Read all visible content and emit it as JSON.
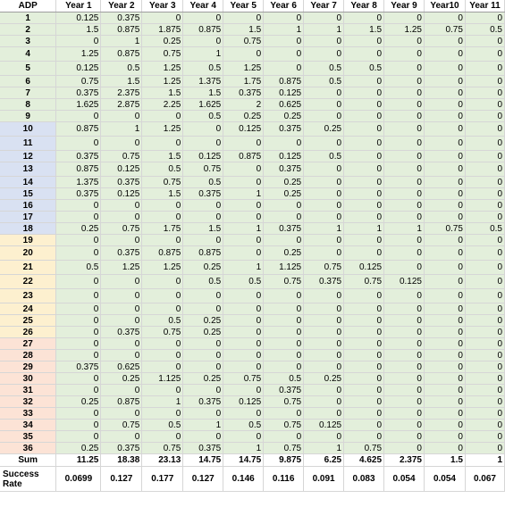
{
  "colors": {
    "value_cells": "#e3efdb",
    "group_1": "#e3efdb",
    "group_2": "#d9e1f2",
    "group_3": "#fdf0cf",
    "group_4": "#fce3d6"
  },
  "table": {
    "headers": [
      "ADP",
      "Year 1",
      "Year 2",
      "Year 3",
      "Year 4",
      "Year 5",
      "Year 6",
      "Year 7",
      "Year 8",
      "Year 9",
      "Year10",
      "Year 11"
    ],
    "rows": [
      {
        "adp": "1",
        "group": 1,
        "values": [
          "0.125",
          "0.375",
          "0",
          "0",
          "0",
          "0",
          "0",
          "0",
          "0",
          "0",
          "0"
        ]
      },
      {
        "adp": "2",
        "group": 1,
        "values": [
          "1.5",
          "0.875",
          "1.875",
          "0.875",
          "1.5",
          "1",
          "1",
          "1.5",
          "1.25",
          "0.75",
          "0.5"
        ]
      },
      {
        "adp": "3",
        "group": 1,
        "values": [
          "0",
          "1",
          "0.25",
          "0",
          "0.75",
          "0",
          "0",
          "0",
          "0",
          "0",
          "0"
        ]
      },
      {
        "adp": "4",
        "group": 1,
        "values": [
          "1.25",
          "0.875",
          "0.75",
          "1",
          "0",
          "0",
          "0",
          "0",
          "0",
          "0",
          "0"
        ]
      },
      {
        "adp": "5",
        "group": 1,
        "values": [
          "0.125",
          "0.5",
          "1.25",
          "0.5",
          "1.25",
          "0",
          "0.5",
          "0.5",
          "0",
          "0",
          "0"
        ]
      },
      {
        "adp": "6",
        "group": 1,
        "values": [
          "0.75",
          "1.5",
          "1.25",
          "1.375",
          "1.75",
          "0.875",
          "0.5",
          "0",
          "0",
          "0",
          "0"
        ]
      },
      {
        "adp": "7",
        "group": 1,
        "values": [
          "0.375",
          "2.375",
          "1.5",
          "1.5",
          "0.375",
          "0.125",
          "0",
          "0",
          "0",
          "0",
          "0"
        ]
      },
      {
        "adp": "8",
        "group": 1,
        "values": [
          "1.625",
          "2.875",
          "2.25",
          "1.625",
          "2",
          "0.625",
          "0",
          "0",
          "0",
          "0",
          "0"
        ]
      },
      {
        "adp": "9",
        "group": 1,
        "values": [
          "0",
          "0",
          "0",
          "0.5",
          "0.25",
          "0.25",
          "0",
          "0",
          "0",
          "0",
          "0"
        ]
      },
      {
        "adp": "10",
        "group": 2,
        "values": [
          "0.875",
          "1",
          "1.25",
          "0",
          "0.125",
          "0.375",
          "0.25",
          "0",
          "0",
          "0",
          "0"
        ]
      },
      {
        "adp": "11",
        "group": 2,
        "values": [
          "0",
          "0",
          "0",
          "0",
          "0",
          "0",
          "0",
          "0",
          "0",
          "0",
          "0"
        ]
      },
      {
        "adp": "12",
        "group": 2,
        "values": [
          "0.375",
          "0.75",
          "1.5",
          "0.125",
          "0.875",
          "0.125",
          "0.5",
          "0",
          "0",
          "0",
          "0"
        ]
      },
      {
        "adp": "13",
        "group": 2,
        "values": [
          "0.875",
          "0.125",
          "0.5",
          "0.75",
          "0",
          "0.375",
          "0",
          "0",
          "0",
          "0",
          "0"
        ]
      },
      {
        "adp": "14",
        "group": 2,
        "values": [
          "1.375",
          "0.375",
          "0.75",
          "0.5",
          "0",
          "0.25",
          "0",
          "0",
          "0",
          "0",
          "0"
        ]
      },
      {
        "adp": "15",
        "group": 2,
        "values": [
          "0.375",
          "0.125",
          "1.5",
          "0.375",
          "1",
          "0.25",
          "0",
          "0",
          "0",
          "0",
          "0"
        ]
      },
      {
        "adp": "16",
        "group": 2,
        "values": [
          "0",
          "0",
          "0",
          "0",
          "0",
          "0",
          "0",
          "0",
          "0",
          "0",
          "0"
        ]
      },
      {
        "adp": "17",
        "group": 2,
        "values": [
          "0",
          "0",
          "0",
          "0",
          "0",
          "0",
          "0",
          "0",
          "0",
          "0",
          "0"
        ]
      },
      {
        "adp": "18",
        "group": 2,
        "values": [
          "0.25",
          "0.75",
          "1.75",
          "1.5",
          "1",
          "0.375",
          "1",
          "1",
          "1",
          "0.75",
          "0.5"
        ]
      },
      {
        "adp": "19",
        "group": 3,
        "values": [
          "0",
          "0",
          "0",
          "0",
          "0",
          "0",
          "0",
          "0",
          "0",
          "0",
          "0"
        ]
      },
      {
        "adp": "20",
        "group": 3,
        "values": [
          "0",
          "0.375",
          "0.875",
          "0.875",
          "0",
          "0.25",
          "0",
          "0",
          "0",
          "0",
          "0"
        ]
      },
      {
        "adp": "21",
        "group": 3,
        "values": [
          "0.5",
          "1.25",
          "1.25",
          "0.25",
          "1",
          "1.125",
          "0.75",
          "0.125",
          "0",
          "0",
          "0"
        ]
      },
      {
        "adp": "22",
        "group": 3,
        "values": [
          "0",
          "0",
          "0",
          "0.5",
          "0.5",
          "0.75",
          "0.375",
          "0.75",
          "0.125",
          "0",
          "0"
        ]
      },
      {
        "adp": "23",
        "group": 3,
        "values": [
          "0",
          "0",
          "0",
          "0",
          "0",
          "0",
          "0",
          "0",
          "0",
          "0",
          "0"
        ]
      },
      {
        "adp": "24",
        "group": 3,
        "values": [
          "0",
          "0",
          "0",
          "0",
          "0",
          "0",
          "0",
          "0",
          "0",
          "0",
          "0"
        ]
      },
      {
        "adp": "25",
        "group": 3,
        "values": [
          "0",
          "0",
          "0.5",
          "0.25",
          "0",
          "0",
          "0",
          "0",
          "0",
          "0",
          "0"
        ]
      },
      {
        "adp": "26",
        "group": 3,
        "values": [
          "0",
          "0.375",
          "0.75",
          "0.25",
          "0",
          "0",
          "0",
          "0",
          "0",
          "0",
          "0"
        ]
      },
      {
        "adp": "27",
        "group": 4,
        "values": [
          "0",
          "0",
          "0",
          "0",
          "0",
          "0",
          "0",
          "0",
          "0",
          "0",
          "0"
        ]
      },
      {
        "adp": "28",
        "group": 4,
        "values": [
          "0",
          "0",
          "0",
          "0",
          "0",
          "0",
          "0",
          "0",
          "0",
          "0",
          "0"
        ]
      },
      {
        "adp": "29",
        "group": 4,
        "values": [
          "0.375",
          "0.625",
          "0",
          "0",
          "0",
          "0",
          "0",
          "0",
          "0",
          "0",
          "0"
        ]
      },
      {
        "adp": "30",
        "group": 4,
        "values": [
          "0",
          "0.25",
          "1.125",
          "0.25",
          "0.75",
          "0.5",
          "0.25",
          "0",
          "0",
          "0",
          "0"
        ]
      },
      {
        "adp": "31",
        "group": 4,
        "values": [
          "0",
          "0",
          "0",
          "0",
          "0",
          "0.375",
          "0",
          "0",
          "0",
          "0",
          "0"
        ]
      },
      {
        "adp": "32",
        "group": 4,
        "values": [
          "0.25",
          "0.875",
          "1",
          "0.375",
          "0.125",
          "0.75",
          "0",
          "0",
          "0",
          "0",
          "0"
        ]
      },
      {
        "adp": "33",
        "group": 4,
        "values": [
          "0",
          "0",
          "0",
          "0",
          "0",
          "0",
          "0",
          "0",
          "0",
          "0",
          "0"
        ]
      },
      {
        "adp": "34",
        "group": 4,
        "values": [
          "0",
          "0.75",
          "0.5",
          "1",
          "0.5",
          "0.75",
          "0.125",
          "0",
          "0",
          "0",
          "0"
        ]
      },
      {
        "adp": "35",
        "group": 4,
        "values": [
          "0",
          "0",
          "0",
          "0",
          "0",
          "0",
          "0",
          "0",
          "0",
          "0",
          "0"
        ]
      },
      {
        "adp": "36",
        "group": 4,
        "values": [
          "0.25",
          "0.375",
          "0.75",
          "0.375",
          "1",
          "0.75",
          "1",
          "0.75",
          "0",
          "0",
          "0"
        ]
      }
    ],
    "sum": {
      "label": "Sum",
      "values": [
        "11.25",
        "18.38",
        "23.13",
        "14.75",
        "14.75",
        "9.875",
        "6.25",
        "4.625",
        "2.375",
        "1.5",
        "1"
      ]
    },
    "success_rate": {
      "label_line1": "Success",
      "label_line2": "Rate",
      "values": [
        "0.0699",
        "0.127",
        "0.177",
        "0.127",
        "0.146",
        "0.116",
        "0.091",
        "0.083",
        "0.054",
        "0.054",
        "0.067"
      ]
    }
  }
}
